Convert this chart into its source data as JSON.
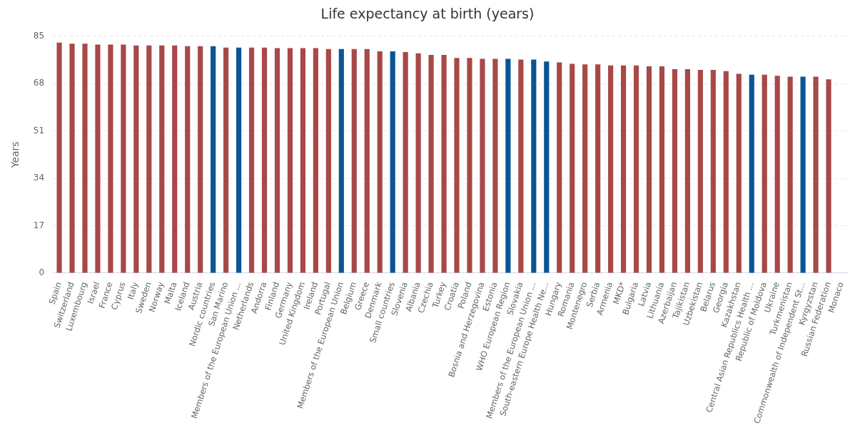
{
  "chart_data": {
    "type": "bar",
    "title": "Life expectancy at birth (years)",
    "ylabel": "Years",
    "categories": [
      "Spain",
      "Switzerland",
      "Luxembourg",
      "Israel",
      "France",
      "Cyprus",
      "Italy",
      "Sweden",
      "Norway",
      "Malta",
      "Iceland",
      "Austria",
      "Nordic countries",
      "San Marino",
      "Members of the European Union ...",
      "Netherlands",
      "Andorra",
      "Finland",
      "Germany",
      "United Kingdom",
      "Ireland",
      "Portugal",
      "Members of the European Union",
      "Belgium",
      "Greece",
      "Denmark",
      "Small countries",
      "Slovenia",
      "Albania",
      "Czechia",
      "Turkey",
      "Croatia",
      "Poland",
      "Bosnia and Herzegovina",
      "Estonia",
      "WHO European Region",
      "Slovakia",
      "Members of the European Union ...",
      "South-eastern Europe Health Ne...",
      "Hungary",
      "Romania",
      "Montenegro",
      "Serbia",
      "Armenia",
      "MKD*",
      "Bulgaria",
      "Latvia",
      "Lithuania",
      "Azerbaijan",
      "Tajikistan",
      "Uzbekistan",
      "Belarus",
      "Georgia",
      "Kazakhstan",
      "Central Asian Republics Health ...",
      "Republic of Moldova",
      "Ukraine",
      "Turkmenistan",
      "Commonwealth of Independent St...",
      "Kyrgyzstan",
      "Russian Federation",
      "Monaco"
    ],
    "values": [
      82.7,
      82.3,
      82.3,
      82.0,
      82.0,
      82.0,
      81.7,
      81.7,
      81.7,
      81.7,
      81.4,
      81.4,
      81.4,
      80.9,
      80.9,
      80.9,
      80.9,
      80.7,
      80.7,
      80.7,
      80.7,
      80.4,
      80.4,
      80.4,
      80.4,
      79.6,
      79.6,
      79.3,
      78.9,
      78.3,
      78.3,
      77.2,
      77.2,
      76.9,
      76.9,
      76.9,
      76.6,
      76.6,
      75.9,
      75.6,
      75.1,
      74.9,
      74.9,
      74.5,
      74.5,
      74.5,
      74.2,
      74.2,
      73.2,
      73.2,
      72.9,
      72.9,
      72.5,
      71.5,
      71.2,
      71.2,
      70.8,
      70.5,
      70.5,
      70.5,
      69.5,
      null
    ],
    "colors": [
      "#a84848",
      "#a84848",
      "#a84848",
      "#a84848",
      "#a84848",
      "#a84848",
      "#a84848",
      "#a84848",
      "#a84848",
      "#a84848",
      "#a84848",
      "#a84848",
      "#0b5594",
      "#a84848",
      "#0b5594",
      "#a84848",
      "#a84848",
      "#a84848",
      "#a84848",
      "#a84848",
      "#a84848",
      "#a84848",
      "#0b5594",
      "#a84848",
      "#a84848",
      "#a84848",
      "#0b5594",
      "#a84848",
      "#a84848",
      "#a84848",
      "#a84848",
      "#a84848",
      "#a84848",
      "#a84848",
      "#a84848",
      "#0b5594",
      "#a84848",
      "#0b5594",
      "#0b5594",
      "#a84848",
      "#a84848",
      "#a84848",
      "#a84848",
      "#a84848",
      "#a84848",
      "#a84848",
      "#a84848",
      "#a84848",
      "#a84848",
      "#a84848",
      "#a84848",
      "#a84848",
      "#a84848",
      "#a84848",
      "#0b5594",
      "#a84848",
      "#a84848",
      "#a84848",
      "#0b5594",
      "#a84848",
      "#a84848",
      "#a84848"
    ],
    "ylim": [
      0,
      85
    ],
    "yticks": [
      0,
      17,
      34,
      51,
      68,
      85
    ],
    "grid": "y",
    "legend": false
  }
}
